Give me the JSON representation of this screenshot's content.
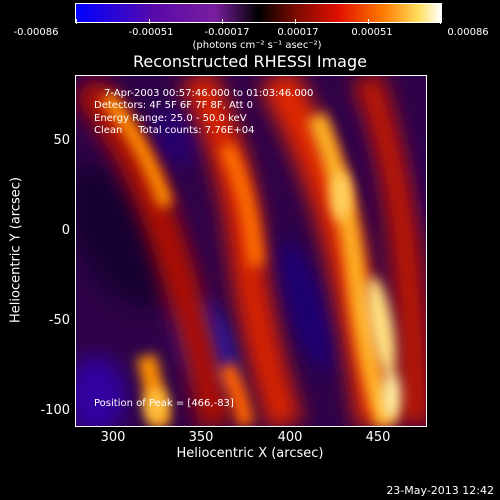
{
  "colorbar": {
    "ticks": [
      "-0.00086",
      "-0.00051",
      "-0.00017",
      "0.00017",
      "0.00051",
      "0.00086"
    ],
    "unit": "(photons cm⁻² s⁻¹ asec⁻²)"
  },
  "title": "Reconstructed RHESSI Image",
  "annotations": {
    "time": "7-Apr-2003 00:57:46.000 to 01:03:46.000",
    "detectors": "Detectors: 4F 5F 6F 7F 8F, Att 0",
    "energy": "Energy Range: 25.0 - 50.0 keV",
    "clean": "Clean     Total counts: 7.76E+04",
    "peak": "Position of Peak = [466,-83]"
  },
  "axes": {
    "xlabel": "Heliocentric X (arcsec)",
    "ylabel": "Heliocentric Y (arcsec)",
    "xticks": [
      "300",
      "350",
      "400",
      "450"
    ],
    "yticks": [
      "50",
      "0",
      "-50",
      "-100"
    ],
    "xlim": [
      278,
      476
    ],
    "ylim": [
      -106,
      87
    ]
  },
  "datestamp": "23-May-2013 12:42",
  "colors": {
    "background": "#000000",
    "negative": "#2a0040",
    "positive": "#ff9000"
  }
}
